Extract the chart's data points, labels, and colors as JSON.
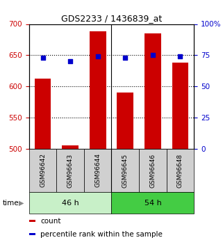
{
  "title": "GDS2233 / 1436839_at",
  "samples": [
    "GSM96642",
    "GSM96643",
    "GSM96644",
    "GSM96645",
    "GSM96646",
    "GSM96648"
  ],
  "groups": [
    "46 h",
    "54 h"
  ],
  "group_membership": [
    0,
    0,
    0,
    1,
    1,
    1
  ],
  "group_colors": [
    "#c8f0c8",
    "#44cc44"
  ],
  "bar_values": [
    612,
    505,
    688,
    590,
    685,
    638
  ],
  "percentile_values": [
    73,
    70,
    74,
    73,
    75,
    74
  ],
  "bar_color": "#cc0000",
  "dot_color": "#0000cc",
  "ylim_left": [
    500,
    700
  ],
  "ylim_right": [
    0,
    100
  ],
  "yticks_left": [
    500,
    550,
    600,
    650,
    700
  ],
  "yticks_right": [
    0,
    25,
    50,
    75,
    100
  ],
  "grid_values": [
    550,
    600,
    650
  ],
  "bar_width": 0.6,
  "bg_color": "#ffffff",
  "tick_label_color_left": "#cc0000",
  "tick_label_color_right": "#0000cc",
  "legend_items": [
    "count",
    "percentile rank within the sample"
  ],
  "legend_colors": [
    "#cc0000",
    "#0000cc"
  ],
  "sample_box_color": "#d0d0d0"
}
